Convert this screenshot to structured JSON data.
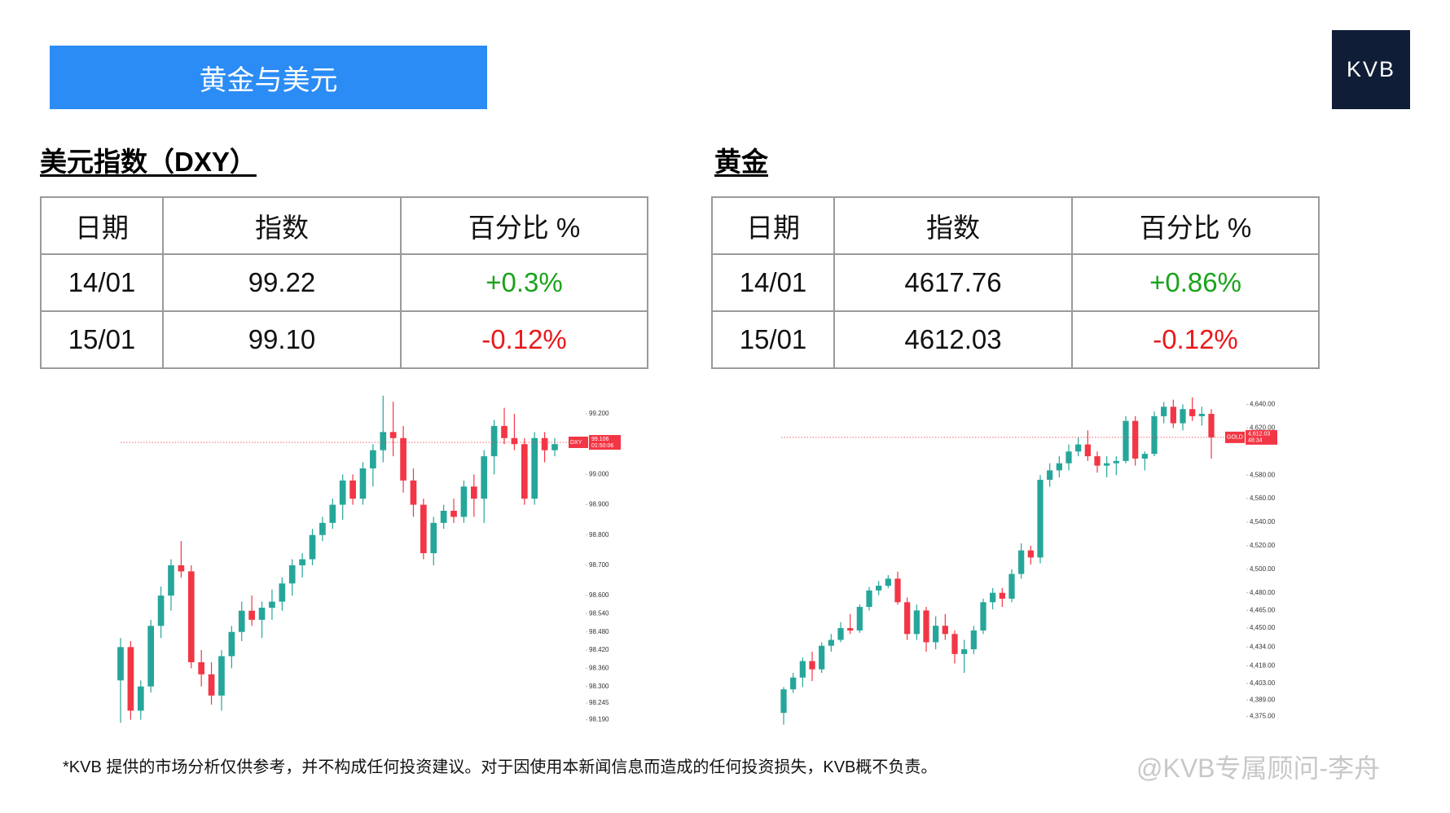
{
  "banner": {
    "title": "黄金与美元"
  },
  "logo": "KVB",
  "sections": [
    {
      "heading": "美元指数（DXY）",
      "table": {
        "headers": [
          "日期",
          "指数",
          "百分比 %"
        ],
        "rows": [
          [
            "14/01",
            "99.22",
            "+0.3%"
          ],
          [
            "15/01",
            "99.10",
            "-0.12%"
          ]
        ],
        "pct_colors": [
          "#1aa31a",
          "#e8191c"
        ]
      },
      "chart_data": {
        "type": "candlestick",
        "up_color": "#26a69a",
        "down_color": "#f23645",
        "symbol": "DXY",
        "last_price": 99.106,
        "countdown": "01:50:06",
        "ylim": [
          98.17,
          99.27
        ],
        "yticks": [
          {
            "value": 99.2,
            "label": "99.200"
          },
          {
            "value": 99.0,
            "label": "99.000"
          },
          {
            "value": 98.9,
            "label": "98.900"
          },
          {
            "value": 98.8,
            "label": "98.800"
          },
          {
            "value": 98.7,
            "label": "98.700"
          },
          {
            "value": 98.6,
            "label": "98.600"
          },
          {
            "value": 98.54,
            "label": "98.540"
          },
          {
            "value": 98.48,
            "label": "98.480"
          },
          {
            "value": 98.42,
            "label": "98.420"
          },
          {
            "value": 98.36,
            "label": "98.360"
          },
          {
            "value": 98.3,
            "label": "98.300"
          },
          98.245,
          {
            "value": 98.19,
            "label": "98.190"
          }
        ],
        "open": [
          98.32,
          98.43,
          98.22,
          98.3,
          98.5,
          98.6,
          98.7,
          98.68,
          98.38,
          98.34,
          98.27,
          98.4,
          98.48,
          98.55,
          98.52,
          98.56,
          98.58,
          98.64,
          98.7,
          98.72,
          98.8,
          98.84,
          98.9,
          98.98,
          98.92,
          99.02,
          99.08,
          99.14,
          99.12,
          98.98,
          98.9,
          98.74,
          98.84,
          98.88,
          98.86,
          98.96,
          98.92,
          99.06,
          99.16,
          99.12,
          99.1,
          98.92,
          99.12,
          99.08
        ],
        "high": [
          98.46,
          98.45,
          98.32,
          98.52,
          98.63,
          98.72,
          98.78,
          98.7,
          98.42,
          98.38,
          98.42,
          98.5,
          98.58,
          98.6,
          98.58,
          98.62,
          98.66,
          98.72,
          98.74,
          98.82,
          98.86,
          98.92,
          99.0,
          99.0,
          99.04,
          99.1,
          99.26,
          99.24,
          99.16,
          99.02,
          98.92,
          98.86,
          98.9,
          98.92,
          98.98,
          99.0,
          99.08,
          99.18,
          99.22,
          99.2,
          99.12,
          99.14,
          99.14,
          99.12
        ],
        "low": [
          98.18,
          98.19,
          98.19,
          98.28,
          98.46,
          98.55,
          98.66,
          98.36,
          98.3,
          98.24,
          98.22,
          98.36,
          98.45,
          98.5,
          98.46,
          98.52,
          98.55,
          98.6,
          98.66,
          98.7,
          98.78,
          98.82,
          98.85,
          98.9,
          98.9,
          98.96,
          99.04,
          99.06,
          98.94,
          98.86,
          98.72,
          98.7,
          98.82,
          98.84,
          98.84,
          98.86,
          98.84,
          99.0,
          99.1,
          99.08,
          98.9,
          98.9,
          99.04,
          99.06
        ],
        "close": [
          98.43,
          98.22,
          98.3,
          98.5,
          98.6,
          98.7,
          98.68,
          98.38,
          98.34,
          98.27,
          98.4,
          98.48,
          98.55,
          98.52,
          98.56,
          98.58,
          98.64,
          98.7,
          98.72,
          98.8,
          98.84,
          98.9,
          98.98,
          98.92,
          99.02,
          99.08,
          99.14,
          99.12,
          98.98,
          98.9,
          98.74,
          98.84,
          98.88,
          98.86,
          98.96,
          98.92,
          99.06,
          99.16,
          99.12,
          99.1,
          98.92,
          99.12,
          99.08,
          99.1
        ]
      }
    },
    {
      "heading": "黄金",
      "table": {
        "headers": [
          "日期",
          "指数",
          "百分比 %"
        ],
        "rows": [
          [
            "14/01",
            "4617.76",
            "+0.86%"
          ],
          [
            "15/01",
            "4612.03",
            "-0.12%"
          ]
        ],
        "pct_colors": [
          "#1aa31a",
          "#e8191c"
        ]
      },
      "chart_data": {
        "type": "candlestick",
        "up_color": "#26a69a",
        "down_color": "#f23645",
        "symbol": "GOLD",
        "last_price": {
          "value": 4612.03,
          "label": "4,612.03"
        },
        "countdown": "48:34",
        "ylim": [
          4367,
          4650
        ],
        "yticks": [
          {
            "value": 4640,
            "label": "4,640.00"
          },
          {
            "value": 4620,
            "label": "4,620.00"
          },
          {
            "value": 4580,
            "label": "4,580.00"
          },
          {
            "value": 4560,
            "label": "4,560.00"
          },
          {
            "value": 4540,
            "label": "4,540.00"
          },
          {
            "value": 4520,
            "label": "4,520.00"
          },
          {
            "value": 4500,
            "label": "4,500.00"
          },
          {
            "value": 4480,
            "label": "4,480.00"
          },
          {
            "value": 4465,
            "label": "4,465.00"
          },
          {
            "value": 4450,
            "label": "4,450.00"
          },
          {
            "value": 4434,
            "label": "4,434.00"
          },
          {
            "value": 4418,
            "label": "4,418.00"
          },
          {
            "value": 4403,
            "label": "4,403.00"
          },
          {
            "value": 4389,
            "label": "4,389.00"
          },
          {
            "value": 4375,
            "label": "4,375.00"
          }
        ],
        "open": [
          4378,
          4398,
          4408,
          4422,
          4415,
          4435,
          4440,
          4450,
          4448,
          4468,
          4482,
          4486,
          4492,
          4472,
          4445,
          4465,
          4438,
          4452,
          4445,
          4428,
          4432,
          4448,
          4472,
          4480,
          4475,
          4496,
          4516,
          4510,
          4576,
          4584,
          4590,
          4600,
          4606,
          4596,
          4588,
          4590,
          4592,
          4626,
          4594,
          4598,
          4630,
          4638,
          4624,
          4636,
          4630,
          4632
        ],
        "high": [
          4400,
          4412,
          4425,
          4430,
          4438,
          4445,
          4455,
          4462,
          4470,
          4485,
          4490,
          4495,
          4498,
          4476,
          4470,
          4468,
          4460,
          4462,
          4448,
          4440,
          4452,
          4475,
          4484,
          4484,
          4500,
          4522,
          4520,
          4580,
          4590,
          4596,
          4606,
          4612,
          4618,
          4600,
          4596,
          4596,
          4630,
          4630,
          4600,
          4634,
          4642,
          4644,
          4640,
          4646,
          4638,
          4636
        ],
        "low": [
          4368,
          4395,
          4400,
          4405,
          4412,
          4430,
          4438,
          4445,
          4446,
          4465,
          4478,
          4484,
          4470,
          4440,
          4440,
          4430,
          4432,
          4440,
          4420,
          4412,
          4428,
          4445,
          4466,
          4468,
          4472,
          4492,
          4504,
          4505,
          4570,
          4578,
          4584,
          4596,
          4592,
          4582,
          4578,
          4580,
          4590,
          4588,
          4584,
          4596,
          4624,
          4620,
          4618,
          4626,
          4622,
          4594
        ],
        "close": [
          4398,
          4408,
          4422,
          4415,
          4435,
          4440,
          4450,
          4448,
          4468,
          4482,
          4486,
          4492,
          4472,
          4445,
          4465,
          4438,
          4452,
          4445,
          4428,
          4432,
          4448,
          4472,
          4480,
          4475,
          4496,
          4516,
          4510,
          4576,
          4584,
          4590,
          4600,
          4606,
          4596,
          4588,
          4590,
          4592,
          4626,
          4594,
          4598,
          4630,
          4638,
          4624,
          4636,
          4630,
          4632,
          4612
        ]
      }
    }
  ],
  "disclaimer": "*KVB 提供的市场分析仅供参考，并不构成任何投资建议。对于因使用本新闻信息而造成的任何投资损失，KVB概不负责。",
  "watermark": "@KVB专属顾问-李舟"
}
